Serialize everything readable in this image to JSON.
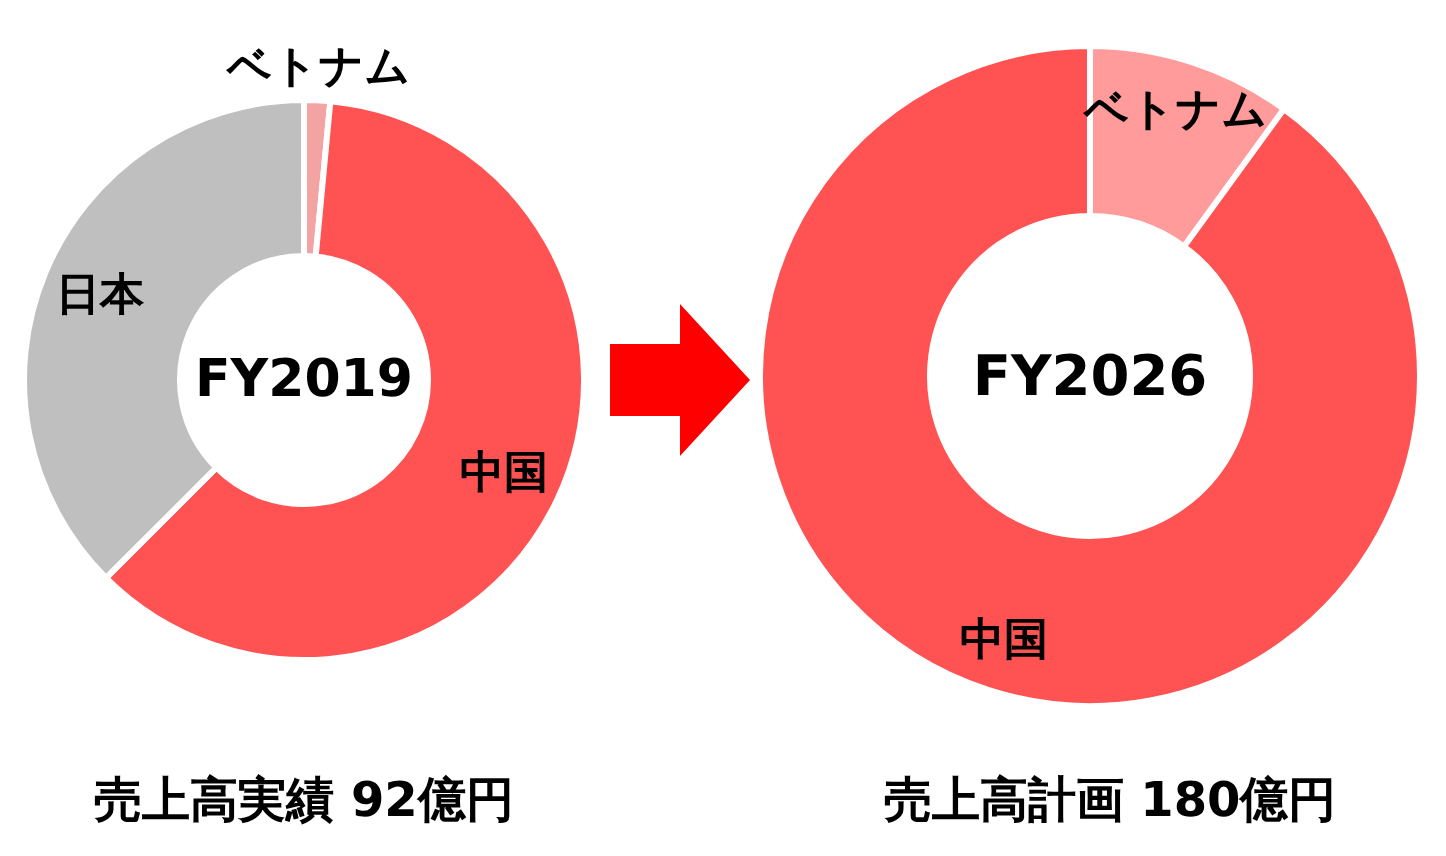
{
  "chart_data": [
    {
      "type": "donut",
      "title": "FY2019",
      "categories": [
        "ベトナム",
        "中国",
        "日本"
      ],
      "values": [
        1.5,
        61,
        37.5
      ],
      "colors": [
        "#f4a3a3",
        "#ff5252",
        "#bfbfbf"
      ],
      "annotations": [
        "売上高実績 92億円"
      ]
    },
    {
      "type": "donut",
      "title": "FY2026",
      "categories": [
        "ベトナム",
        "中国"
      ],
      "values": [
        10,
        90
      ],
      "colors": [
        "#ff9b9b",
        "#ff5252"
      ],
      "annotations": [
        "売上高計画 180億円"
      ]
    }
  ]
}
